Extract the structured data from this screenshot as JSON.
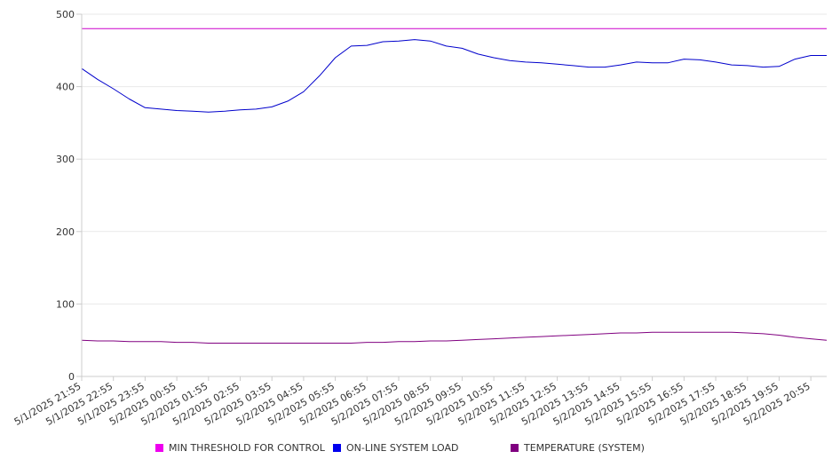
{
  "chart_data": {
    "type": "line",
    "ylim": [
      0,
      500
    ],
    "yticks": [
      0,
      100,
      200,
      300,
      400,
      500
    ],
    "grid": true,
    "legend_position": "bottom",
    "x_tick_labels": [
      "5/1/2025 21:55",
      "5/1/2025 22:55",
      "5/1/2025 23:55",
      "5/2/2025 00:55",
      "5/2/2025 01:55",
      "5/2/2025 02:55",
      "5/2/2025 03:55",
      "5/2/2025 04:55",
      "5/2/2025 05:55",
      "5/2/2025 06:55",
      "5/2/2025 07:55",
      "5/2/2025 08:55",
      "5/2/2025 09:55",
      "5/2/2025 10:55",
      "5/2/2025 11:55",
      "5/2/2025 12:55",
      "5/2/2025 13:55",
      "5/2/2025 14:55",
      "5/2/2025 15:55",
      "5/2/2025 16:55",
      "5/2/2025 17:55",
      "5/2/2025 18:55",
      "5/2/2025 19:55",
      "5/2/2025 20:55"
    ],
    "x": [
      "5/1/2025 21:55",
      "5/1/2025 22:25",
      "5/1/2025 22:55",
      "5/1/2025 23:25",
      "5/1/2025 23:55",
      "5/2/2025 00:25",
      "5/2/2025 00:55",
      "5/2/2025 01:25",
      "5/2/2025 01:55",
      "5/2/2025 02:25",
      "5/2/2025 02:55",
      "5/2/2025 03:25",
      "5/2/2025 03:55",
      "5/2/2025 04:25",
      "5/2/2025 04:55",
      "5/2/2025 05:25",
      "5/2/2025 05:55",
      "5/2/2025 06:25",
      "5/2/2025 06:55",
      "5/2/2025 07:25",
      "5/2/2025 07:55",
      "5/2/2025 08:25",
      "5/2/2025 08:55",
      "5/2/2025 09:25",
      "5/2/2025 09:55",
      "5/2/2025 10:25",
      "5/2/2025 10:55",
      "5/2/2025 11:25",
      "5/2/2025 11:55",
      "5/2/2025 12:25",
      "5/2/2025 12:55",
      "5/2/2025 13:25",
      "5/2/2025 13:55",
      "5/2/2025 14:25",
      "5/2/2025 14:55",
      "5/2/2025 15:25",
      "5/2/2025 15:55",
      "5/2/2025 16:25",
      "5/2/2025 16:55",
      "5/2/2025 17:25",
      "5/2/2025 17:55",
      "5/2/2025 18:25",
      "5/2/2025 18:55",
      "5/2/2025 19:25",
      "5/2/2025 19:55",
      "5/2/2025 20:25",
      "5/2/2025 20:55",
      "5/2/2025 21:25"
    ],
    "series": [
      {
        "name": "MIN THRESHOLD FOR CONTROL",
        "color": "#cc00cc",
        "values": [
          480,
          480,
          480,
          480,
          480,
          480,
          480,
          480,
          480,
          480,
          480,
          480,
          480,
          480,
          480,
          480,
          480,
          480,
          480,
          480,
          480,
          480,
          480,
          480,
          480,
          480,
          480,
          480,
          480,
          480,
          480,
          480,
          480,
          480,
          480,
          480,
          480,
          480,
          480,
          480,
          480,
          480,
          480,
          480,
          480,
          480,
          480,
          480
        ]
      },
      {
        "name": "ON-LINE SYSTEM LOAD",
        "color": "#0000cc",
        "values": [
          425,
          410,
          397,
          383,
          371,
          369,
          367,
          366,
          365,
          366,
          368,
          369,
          372,
          380,
          393,
          415,
          440,
          456,
          457,
          462,
          463,
          465,
          463,
          456,
          453,
          445,
          440,
          436,
          434,
          433,
          431,
          429,
          427,
          427,
          430,
          434,
          433,
          433,
          438,
          437,
          434,
          430,
          429,
          427,
          428,
          438,
          443,
          443
        ]
      },
      {
        "name": "TEMPERATURE (SYSTEM)",
        "color": "#800080",
        "values": [
          50,
          49,
          49,
          48,
          48,
          48,
          47,
          47,
          46,
          46,
          46,
          46,
          46,
          46,
          46,
          46,
          46,
          46,
          47,
          47,
          48,
          48,
          49,
          49,
          50,
          51,
          52,
          53,
          54,
          55,
          56,
          57,
          58,
          59,
          60,
          60,
          61,
          61,
          61,
          61,
          61,
          61,
          60,
          59,
          57,
          54,
          52,
          50
        ]
      }
    ]
  }
}
